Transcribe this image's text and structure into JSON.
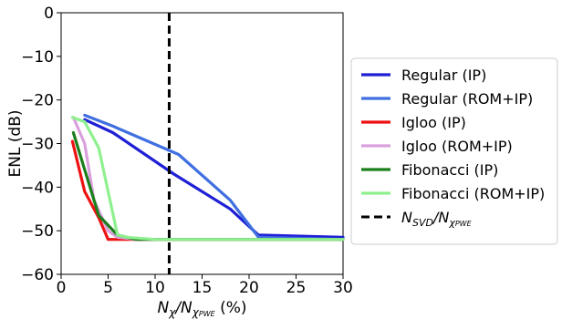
{
  "chart_data": {
    "type": "line",
    "title": "",
    "xlabel": {
      "main": "N",
      "sub1": "χ",
      "slash": "/N",
      "sub2": "χ",
      "sub3": "PWE",
      "suffix": " (%)"
    },
    "ylabel": "ENL (dB)",
    "xlim": [
      0,
      30
    ],
    "ylim": [
      -60,
      0
    ],
    "xticks": [
      0,
      5,
      10,
      15,
      20,
      25,
      30
    ],
    "yticks": [
      0,
      -10,
      -20,
      -30,
      -40,
      -50,
      -60
    ],
    "xtick_labels": [
      "0",
      "5",
      "10",
      "15",
      "20",
      "25",
      "30"
    ],
    "ytick_labels": [
      "0",
      "−10",
      "−20",
      "−30",
      "−40",
      "−50",
      "−60"
    ],
    "grid": false,
    "legend_position": "outside-right",
    "series": [
      {
        "name": "Regular (IP)",
        "color": "#1f1fd6",
        "x": [
          2.5,
          5.5,
          12,
          18,
          21,
          30
        ],
        "y": [
          -24.5,
          -27.5,
          -37,
          -45,
          -51,
          -51.5
        ]
      },
      {
        "name": "Regular (ROM+IP)",
        "color": "#3f6fe0",
        "x": [
          2.5,
          5.5,
          12.5,
          18,
          21,
          30
        ],
        "y": [
          -23.5,
          -26,
          -32.5,
          -43,
          -51.5,
          -52
        ]
      },
      {
        "name": "Igloo (IP)",
        "color": "#ee1111",
        "x": [
          1.2,
          2.5,
          4,
          5,
          7,
          10,
          15,
          20,
          25,
          30
        ],
        "y": [
          -29.5,
          -41,
          -47,
          -52,
          -52,
          -52,
          -52,
          -52,
          -52,
          -52
        ]
      },
      {
        "name": "Igloo (ROM+IP)",
        "color": "#d9a0dd",
        "x": [
          1.3,
          2.5,
          3.5,
          5,
          6,
          8,
          12,
          20,
          30
        ],
        "y": [
          -24,
          -30,
          -43,
          -50,
          -51.5,
          -52,
          -52,
          -52,
          -52
        ]
      },
      {
        "name": "Fibonacci (IP)",
        "color": "#1b7f1b",
        "x": [
          1.3,
          2.5,
          4,
          6,
          8,
          12,
          20,
          30
        ],
        "y": [
          -27.5,
          -36,
          -46.5,
          -51,
          -52,
          -52,
          -52,
          -52
        ]
      },
      {
        "name": "Fibonacci (ROM+IP)",
        "color": "#8ef08e",
        "x": [
          1.2,
          2.5,
          4,
          6,
          7,
          10,
          15,
          20,
          25,
          30
        ],
        "y": [
          -24,
          -25,
          -31,
          -51,
          -51.5,
          -52,
          -52,
          -52,
          -52,
          -52
        ]
      }
    ],
    "vline": {
      "x": 11.5,
      "label": {
        "main": "N",
        "sub1": "SVD",
        "slash": "/N",
        "sub2": "χ",
        "sub3": "PWE"
      },
      "color": "#000000"
    }
  }
}
